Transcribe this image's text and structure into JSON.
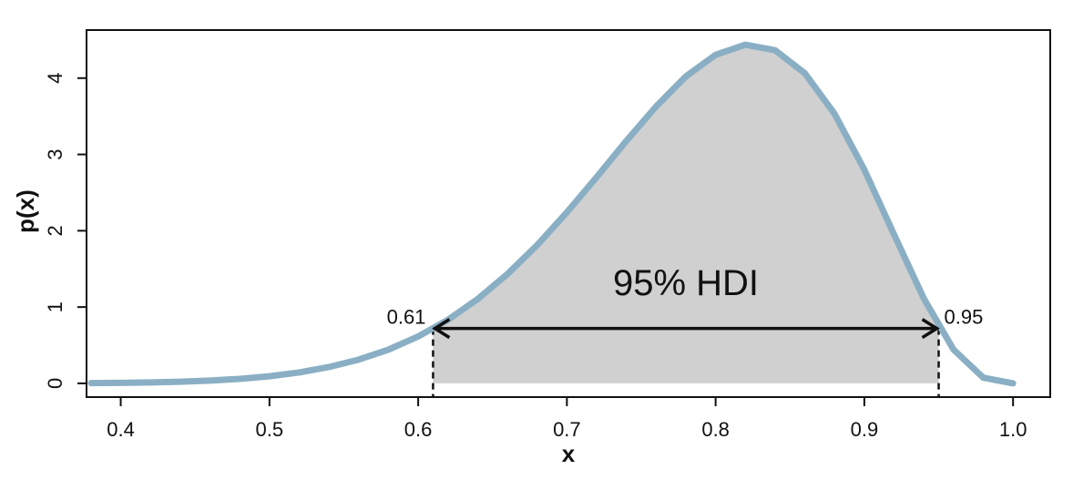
{
  "chart_data": {
    "type": "line",
    "x_label": "x",
    "y_label": "p(x)",
    "annotation": "95% HDI",
    "x": [
      0.38,
      0.4,
      0.42,
      0.44,
      0.46,
      0.48,
      0.5,
      0.52,
      0.54,
      0.56,
      0.58,
      0.6,
      0.62,
      0.64,
      0.66,
      0.68,
      0.7,
      0.72,
      0.74,
      0.76,
      0.78,
      0.8,
      0.82,
      0.84,
      0.86,
      0.88,
      0.9,
      0.92,
      0.94,
      0.96,
      0.98,
      1.0
    ],
    "series": [
      {
        "color": "#8aafc4",
        "values": [
          0.004,
          0.007,
          0.013,
          0.022,
          0.037,
          0.059,
          0.093,
          0.143,
          0.214,
          0.311,
          0.442,
          0.614,
          0.833,
          1.105,
          1.432,
          1.812,
          2.241,
          2.703,
          3.178,
          3.629,
          4.023,
          4.306,
          4.438,
          4.365,
          4.064,
          3.532,
          2.8,
          1.95,
          1.112,
          0.442,
          0.074,
          0
        ]
      }
    ],
    "hdi": {
      "lower": 0.61,
      "upper": 0.95,
      "height": 0.72,
      "fill": "#d0d0d0"
    },
    "xlim": [
      0.377,
      1.025
    ],
    "ylim": [
      -0.18,
      4.63
    ],
    "xticks": [
      0.4,
      0.5,
      0.6,
      0.7,
      0.8,
      0.9,
      {
        "value": 1.0,
        "label": "1.0"
      }
    ],
    "yticks": [
      0,
      1,
      2,
      3,
      4
    ]
  }
}
